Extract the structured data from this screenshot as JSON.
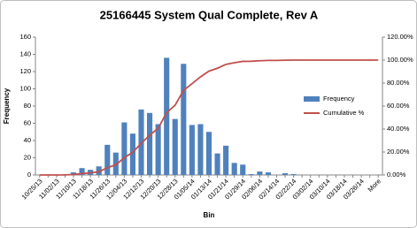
{
  "chart_data": {
    "type": "pareto",
    "title": "25166445  System Qual Complete, Rev A",
    "x_label": "Bin",
    "y_label": "Frequency",
    "categories": [
      "10/25/13",
      null,
      "11/02/13",
      null,
      "11/10/13",
      null,
      "11/18/13",
      null,
      "11/26/13",
      null,
      "12/04/13",
      null,
      "12/12/13",
      null,
      "12/20/13",
      null,
      "12/28/13",
      null,
      "01/05/14",
      null,
      "01/13/14",
      null,
      "01/21/14",
      null,
      "01/29/14",
      null,
      "02/06/14",
      null,
      "02/14/14",
      null,
      "02/22/14",
      null,
      "03/02/14",
      null,
      "03/10/14",
      null,
      "03/18/14",
      null,
      "03/26/14",
      null,
      "More"
    ],
    "series": [
      {
        "name": "Frequency",
        "color": "#4f81bd",
        "kind": "bar",
        "values": [
          0,
          0,
          0,
          1,
          3,
          8,
          6,
          10,
          35,
          26,
          61,
          48,
          76,
          72,
          59,
          136,
          65,
          129,
          58,
          59,
          50,
          25,
          34,
          14,
          12,
          1,
          4,
          3,
          0,
          2,
          1,
          0,
          0,
          0,
          0,
          0,
          0,
          0,
          0,
          0,
          0
        ]
      },
      {
        "name": "Cumulative %",
        "color": "#c0504d",
        "kind": "line",
        "axis": "y2",
        "values": [
          0,
          0,
          0,
          0.1,
          0.4,
          1.2,
          1.8,
          2.8,
          6.3,
          8.9,
          15.0,
          19.8,
          27.5,
          34.7,
          40.6,
          54.2,
          60.7,
          73.6,
          79.5,
          85.4,
          90.4,
          92.9,
          96.3,
          97.7,
          98.9,
          99.0,
          99.4,
          99.7,
          99.7,
          99.9,
          100,
          100,
          100,
          100,
          100,
          100,
          100,
          100,
          100,
          100,
          100
        ]
      }
    ],
    "ylim": [
      0,
      160
    ],
    "yticks": [
      0,
      20,
      40,
      60,
      80,
      100,
      120,
      140,
      160
    ],
    "y2lim": [
      0,
      120
    ],
    "y2ticks": [
      {
        "value": 0,
        "label": "0.00%"
      },
      {
        "value": 20,
        "label": "20.00%"
      },
      {
        "value": 40,
        "label": "40.00%"
      },
      {
        "value": 60,
        "label": "60.00%"
      },
      {
        "value": 80,
        "label": "80.00%"
      },
      {
        "value": 100,
        "label": "100.00%"
      },
      {
        "value": 120,
        "label": "120.00%"
      }
    ],
    "grid": false,
    "legend": "right"
  }
}
